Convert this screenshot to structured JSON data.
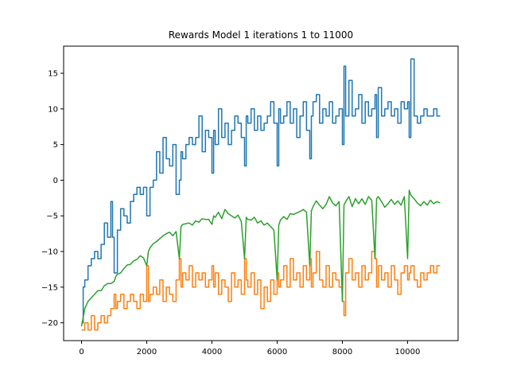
{
  "chart_data": {
    "type": "line",
    "title": "Rewards Model 1 iterations 1 to 11000",
    "xlabel": "",
    "ylabel": "",
    "xlim": [
      -550,
      11550
    ],
    "ylim": [
      -22.5,
      18.8
    ],
    "x_ticks": [
      0,
      2000,
      4000,
      6000,
      8000,
      10000
    ],
    "x_tick_labels": [
      "0",
      "2000",
      "4000",
      "6000",
      "8000",
      "10000"
    ],
    "y_ticks": [
      -20,
      -15,
      -10,
      -5,
      0,
      5,
      10,
      15
    ],
    "y_tick_labels": [
      "−20",
      "−15",
      "−10",
      "−5",
      "0",
      "5",
      "10",
      "15"
    ],
    "grid": false,
    "legend": "none",
    "series": [
      {
        "color": "#1f77b4",
        "style": "step",
        "x": [
          0,
          50,
          100,
          200,
          300,
          400,
          500,
          600,
          700,
          800,
          900,
          950,
          1000,
          1100,
          1200,
          1300,
          1400,
          1500,
          1600,
          1700,
          1800,
          1900,
          2000,
          2100,
          2200,
          2300,
          2400,
          2500,
          2600,
          2700,
          2800,
          2900,
          3000,
          3050,
          3100,
          3200,
          3300,
          3400,
          3500,
          3600,
          3700,
          3800,
          3900,
          4000,
          4050,
          4100,
          4200,
          4300,
          4400,
          4500,
          4600,
          4700,
          4800,
          4900,
          5000,
          5050,
          5100,
          5200,
          5300,
          5400,
          5500,
          5600,
          5700,
          5800,
          5900,
          6000,
          6050,
          6100,
          6200,
          6300,
          6400,
          6500,
          6600,
          6700,
          6800,
          6900,
          7000,
          7050,
          7100,
          7200,
          7300,
          7400,
          7500,
          7600,
          7700,
          7800,
          7900,
          8000,
          8050,
          8100,
          8200,
          8300,
          8400,
          8500,
          8600,
          8700,
          8800,
          8900,
          9000,
          9050,
          9100,
          9200,
          9300,
          9400,
          9500,
          9600,
          9700,
          9800,
          9900,
          10000,
          10050,
          10100,
          10200,
          10300,
          10400,
          10500,
          10600,
          10700,
          10800,
          10900,
          11000
        ],
        "y": [
          -20,
          -15,
          -14,
          -12,
          -11,
          -10,
          -11,
          -9,
          -6,
          -8,
          -3,
          -8,
          -13,
          -7,
          -4,
          -5,
          -6,
          -3,
          -2,
          -1,
          -2,
          -1,
          -5,
          -1,
          0,
          4,
          1,
          6,
          3,
          2,
          5,
          -2,
          0,
          4,
          3,
          5,
          6,
          5,
          6,
          9,
          4,
          7,
          6,
          1,
          7,
          5,
          10,
          6,
          8,
          5,
          7,
          9,
          8,
          6,
          2,
          9,
          8,
          10,
          7,
          9,
          7,
          8,
          9,
          11,
          8,
          2,
          10,
          8,
          9,
          11,
          8,
          10,
          6,
          9,
          11,
          7,
          3,
          9,
          11,
          12,
          8,
          10,
          9,
          11,
          8,
          9,
          10,
          5,
          16,
          9,
          14,
          9,
          10,
          12,
          8,
          11,
          9,
          10,
          12,
          6,
          13,
          9,
          10,
          11,
          9,
          10,
          8,
          11,
          10,
          11,
          6,
          17,
          9,
          8,
          9,
          10,
          9,
          9,
          10,
          9,
          9
        ]
      },
      {
        "color": "#ff7f0e",
        "style": "step",
        "x": [
          0,
          100,
          200,
          300,
          400,
          500,
          600,
          700,
          800,
          900,
          1000,
          1050,
          1100,
          1200,
          1300,
          1400,
          1500,
          1600,
          1700,
          1800,
          1900,
          2000,
          2050,
          2100,
          2200,
          2300,
          2400,
          2500,
          2600,
          2700,
          2800,
          2900,
          3000,
          3050,
          3100,
          3200,
          3300,
          3400,
          3500,
          3600,
          3700,
          3800,
          3900,
          4000,
          4050,
          4100,
          4200,
          4300,
          4400,
          4500,
          4600,
          4700,
          4800,
          4900,
          5000,
          5050,
          5100,
          5200,
          5300,
          5400,
          5500,
          5600,
          5700,
          5800,
          5900,
          6000,
          6050,
          6100,
          6200,
          6300,
          6400,
          6500,
          6600,
          6700,
          6800,
          6900,
          7000,
          7050,
          7100,
          7200,
          7300,
          7400,
          7500,
          7600,
          7700,
          7800,
          7900,
          8000,
          8050,
          8100,
          8200,
          8300,
          8400,
          8500,
          8600,
          8700,
          8800,
          8900,
          9000,
          9050,
          9100,
          9200,
          9300,
          9400,
          9500,
          9600,
          9700,
          9800,
          9900,
          10000,
          10050,
          10100,
          10200,
          10300,
          10400,
          10500,
          10600,
          10700,
          10800,
          10900,
          11000
        ],
        "y": [
          -21,
          -20,
          -21,
          -19,
          -21,
          -20,
          -19,
          -20,
          -19,
          -18,
          -16,
          -18,
          -17,
          -16,
          -18,
          -17,
          -16,
          -17,
          -18,
          -16,
          -17,
          -12,
          -17,
          -16,
          -15,
          -16,
          -14,
          -17,
          -15,
          -16,
          -17,
          -14,
          -11,
          -15,
          -13,
          -14,
          -12,
          -15,
          -13,
          -14,
          -13,
          -15,
          -14,
          -12,
          -15,
          -13,
          -16,
          -14,
          -15,
          -17,
          -13,
          -15,
          -14,
          -16,
          -11,
          -14,
          -15,
          -13,
          -16,
          -14,
          -18,
          -15,
          -17,
          -14,
          -16,
          -13,
          -15,
          -14,
          -12,
          -15,
          -11,
          -14,
          -13,
          -15,
          -12,
          -14,
          -11,
          -15,
          -13,
          -10,
          -14,
          -15,
          -12,
          -15,
          -13,
          -14,
          -15,
          -17,
          -19,
          -13,
          -11,
          -14,
          -13,
          -15,
          -12,
          -14,
          -13,
          -10,
          -11,
          -15,
          -12,
          -14,
          -13,
          -15,
          -12,
          -14,
          -16,
          -13,
          -12,
          -14,
          -13,
          -12,
          -14,
          -15,
          -13,
          -14,
          -13,
          -12,
          -13,
          -12,
          -12
        ]
      },
      {
        "color": "#2ca02c",
        "style": "line",
        "x": [
          0,
          100,
          200,
          300,
          400,
          500,
          600,
          700,
          800,
          900,
          1000,
          1050,
          1100,
          1200,
          1300,
          1400,
          1500,
          1600,
          1700,
          1800,
          1900,
          2000,
          2050,
          2100,
          2200,
          2300,
          2400,
          2500,
          2600,
          2700,
          2800,
          2900,
          3000,
          3050,
          3100,
          3200,
          3300,
          3400,
          3500,
          3600,
          3700,
          3800,
          3900,
          4000,
          4050,
          4100,
          4200,
          4300,
          4400,
          4500,
          4600,
          4700,
          4800,
          4900,
          5000,
          5050,
          5100,
          5200,
          5300,
          5400,
          5500,
          5600,
          5700,
          5800,
          5900,
          6000,
          6050,
          6100,
          6200,
          6300,
          6400,
          6500,
          6600,
          6700,
          6800,
          6900,
          7000,
          7050,
          7100,
          7200,
          7300,
          7400,
          7500,
          7600,
          7700,
          7800,
          7900,
          8000,
          8050,
          8100,
          8200,
          8300,
          8400,
          8500,
          8600,
          8700,
          8800,
          8900,
          9000,
          9050,
          9100,
          9200,
          9300,
          9400,
          9500,
          9600,
          9700,
          9800,
          9900,
          10000,
          10050,
          10100,
          10200,
          10300,
          10400,
          10500,
          10600,
          10700,
          10800,
          10900,
          11000
        ],
        "y": [
          -20.5,
          -18,
          -17,
          -16.5,
          -16,
          -15.5,
          -15.5,
          -14.8,
          -14.5,
          -14.5,
          -14.2,
          -13.5,
          -13.2,
          -13,
          -12.4,
          -11.9,
          -11.8,
          -11.3,
          -11.1,
          -10.6,
          -10.9,
          -12,
          -10,
          -9.5,
          -8.9,
          -8.6,
          -8.2,
          -7.8,
          -7.5,
          -7.3,
          -7.8,
          -7.2,
          -11,
          -6.5,
          -6.2,
          -6.1,
          -6,
          -6.3,
          -5.7,
          -5.9,
          -5.4,
          -5.5,
          -5.5,
          -6.2,
          -5,
          -5.2,
          -4.5,
          -5.4,
          -4.1,
          -4.7,
          -5.0,
          -5.3,
          -4.9,
          -5.8,
          -11,
          -5.2,
          -5.5,
          -5.6,
          -5.2,
          -6.0,
          -5.7,
          -6.3,
          -6.0,
          -6.5,
          -7.0,
          -14,
          -6.3,
          -5.6,
          -5.1,
          -5.5,
          -4.7,
          -4.8,
          -4.6,
          -4.4,
          -4.1,
          -4.5,
          -12,
          -4.3,
          -3.7,
          -2.9,
          -3.5,
          -4.0,
          -3.4,
          -2.3,
          -3.2,
          -3.6,
          -3.0,
          -17,
          -3.5,
          -3.0,
          -2.3,
          -3.7,
          -2.6,
          -3.3,
          -2.6,
          -3.4,
          -2.3,
          -2.8,
          -11,
          -2.6,
          -2.3,
          -3.0,
          -3.8,
          -3.3,
          -2.7,
          -3.4,
          -2.9,
          -3.5,
          -2.3,
          -11,
          -1.4,
          -2.1,
          -2.6,
          -3.2,
          -3.6,
          -3.0,
          -3.5,
          -2.8,
          -3.3,
          -3.0,
          -3.2
        ]
      }
    ]
  }
}
